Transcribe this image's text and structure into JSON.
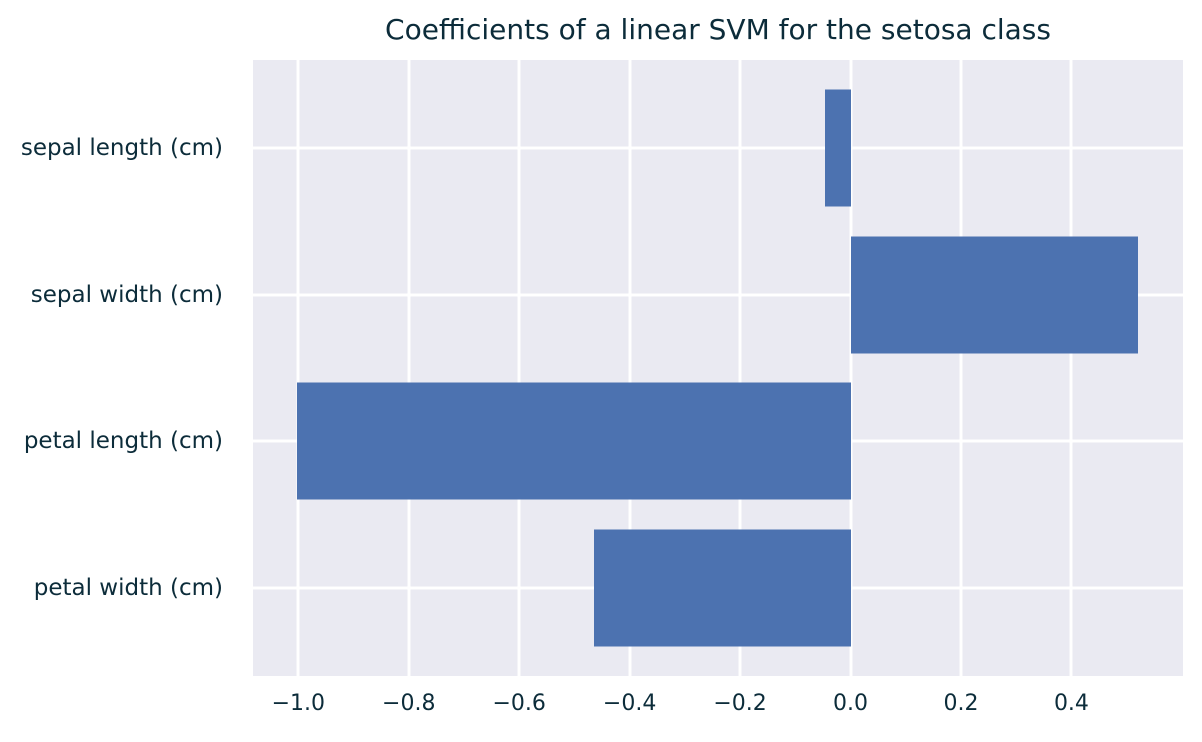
{
  "title": "Coefficients of a linear SVM for the setosa class",
  "colors": {
    "figure_bg": "#ffffff",
    "plot_bg": "#eaeaf2",
    "grid": "#ffffff",
    "bar": "#4c72b0",
    "text": "#0c2c3a"
  },
  "chart_data": {
    "type": "bar",
    "orientation": "horizontal",
    "title": "Coefficients of a linear SVM for the setosa class",
    "xlabel": "",
    "ylabel": "",
    "categories": [
      "sepal length (cm)",
      "sepal width (cm)",
      "petal length (cm)",
      "petal width (cm)"
    ],
    "values": [
      -0.046,
      0.521,
      -1.003,
      -0.464
    ],
    "baseline": 0.0,
    "xlim": [
      -1.082,
      0.602
    ],
    "xticks": [
      -1.0,
      -0.8,
      -0.6,
      -0.4,
      -0.2,
      0.0,
      0.2,
      0.4
    ],
    "xtick_labels": [
      "−1.0",
      "−0.8",
      "−0.6",
      "−0.4",
      "−0.2",
      "0.0",
      "0.2",
      "0.4"
    ],
    "grid": true,
    "legend": null
  }
}
